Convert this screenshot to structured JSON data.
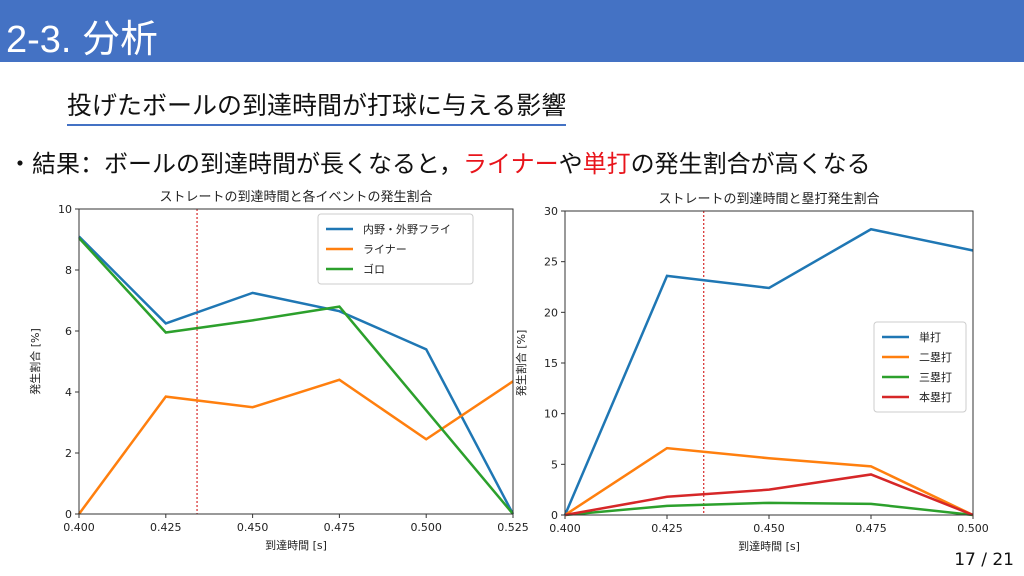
{
  "header": {
    "title": "2-3.  分析"
  },
  "subtitle": "投げたボールの到達時間が打球に与える影響",
  "bullet": {
    "prefix": "・結果：ボールの到達時間が長くなると，",
    "red1": "ライナー",
    "mid": "や",
    "red2": "単打",
    "suffix": "の発生割合が高くなる"
  },
  "page_number": "17 / 21",
  "chart_data": [
    {
      "type": "line",
      "title": "ストレートの到達時間と各イベントの発生割合",
      "xlabel": "到達時間 [s]",
      "ylabel": "発生割合 [%]",
      "x": [
        0.4,
        0.425,
        0.45,
        0.475,
        0.5,
        0.525
      ],
      "xlim": [
        0.4,
        0.525
      ],
      "ylim": [
        0,
        10
      ],
      "xticks": [
        "0.400",
        "0.425",
        "0.450",
        "0.475",
        "0.500",
        "0.525"
      ],
      "yticks": [
        0,
        2,
        4,
        6,
        8,
        10
      ],
      "vline": 0.434,
      "legend": "top-right",
      "series": [
        {
          "name": "内野・外野フライ",
          "color": "#1f77b4",
          "values": [
            9.1,
            6.25,
            7.25,
            6.65,
            5.4,
            0
          ]
        },
        {
          "name": "ライナー",
          "color": "#ff7f0e",
          "values": [
            0,
            3.85,
            3.5,
            4.4,
            2.45,
            4.35
          ]
        },
        {
          "name": "ゴロ",
          "color": "#2ca02c",
          "values": [
            9.05,
            5.95,
            6.35,
            6.8,
            3.4,
            0
          ]
        }
      ]
    },
    {
      "type": "line",
      "title": "ストレートの到達時間と塁打発生割合",
      "xlabel": "到達時間 [s]",
      "ylabel": "発生割合 [%]",
      "x": [
        0.4,
        0.425,
        0.45,
        0.475,
        0.5
      ],
      "xlim": [
        0.4,
        0.5
      ],
      "ylim": [
        0,
        30
      ],
      "xticks": [
        "0.400",
        "0.425",
        "0.450",
        "0.475",
        "0.500"
      ],
      "yticks": [
        0,
        5,
        10,
        15,
        20,
        25,
        30
      ],
      "vline": 0.434,
      "legend": "center-right",
      "series": [
        {
          "name": "単打",
          "color": "#1f77b4",
          "values": [
            0,
            23.6,
            22.4,
            28.2,
            26.1
          ]
        },
        {
          "name": "二塁打",
          "color": "#ff7f0e",
          "values": [
            0,
            6.6,
            5.6,
            4.8,
            0
          ]
        },
        {
          "name": "三塁打",
          "color": "#2ca02c",
          "values": [
            0,
            0.9,
            1.2,
            1.1,
            0
          ]
        },
        {
          "name": "本塁打",
          "color": "#d62728",
          "values": [
            0,
            1.8,
            2.5,
            4.0,
            0
          ]
        }
      ]
    }
  ]
}
